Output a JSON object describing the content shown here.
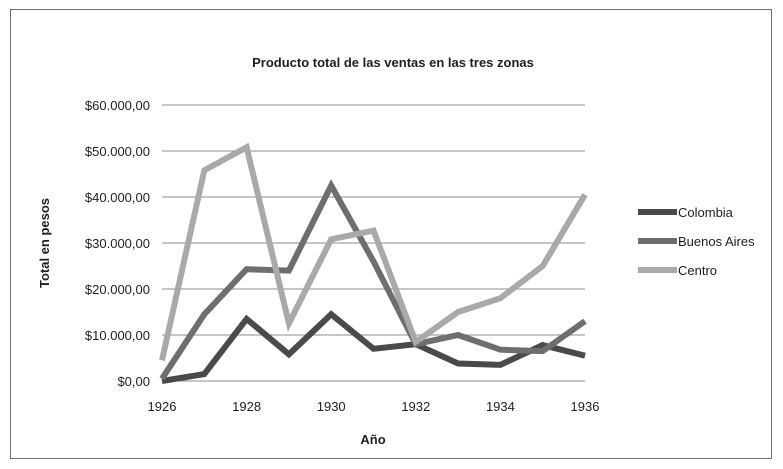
{
  "chart_data": {
    "type": "line",
    "title": "Producto total de las ventas en las tres zonas",
    "xlabel": "Año",
    "ylabel": "Total en pesos",
    "x": [
      1926,
      1927,
      1928,
      1929,
      1930,
      1931,
      1932,
      1933,
      1934,
      1935,
      1936
    ],
    "x_ticks": [
      "1926",
      "1928",
      "1930",
      "1932",
      "1934",
      "1936"
    ],
    "y_ticks": [
      "$0,00",
      "$10.000,00",
      "$20.000,00",
      "$30.000,00",
      "$40.000,00",
      "$50.000,00",
      "$60.000,00"
    ],
    "ylim": [
      0,
      60000
    ],
    "xlim": [
      1926,
      1936
    ],
    "grid": "horizontal",
    "legend_position": "right",
    "series": [
      {
        "name": "Colombia",
        "color": "#4a4a4a",
        "values": [
          0,
          1500,
          13500,
          5800,
          14500,
          7000,
          8000,
          3800,
          3500,
          7800,
          5500
        ]
      },
      {
        "name": "Buenos Aires",
        "color": "#6e6e6e",
        "values": [
          500,
          14500,
          24300,
          24000,
          42500,
          26000,
          8000,
          10000,
          6800,
          6500,
          13000
        ]
      },
      {
        "name": "Centro",
        "color": "#a9a9a9",
        "values": [
          4500,
          45800,
          50800,
          12500,
          30800,
          32700,
          8500,
          15000,
          18000,
          25000,
          40500
        ]
      }
    ]
  }
}
